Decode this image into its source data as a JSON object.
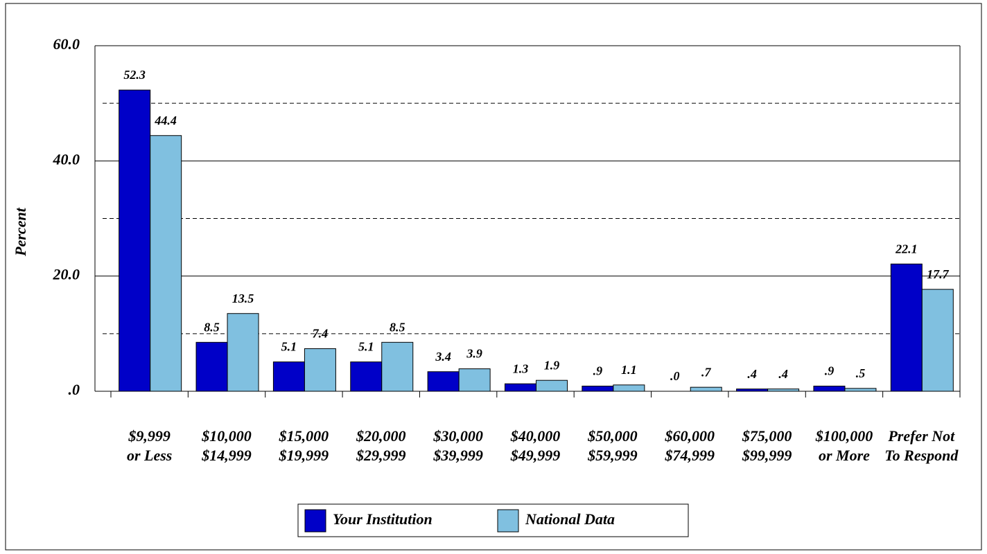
{
  "chart_data": {
    "type": "bar",
    "y_label": "Percent",
    "categories": [
      [
        "$9,999",
        "or Less"
      ],
      [
        "$10,000",
        "$14,999"
      ],
      [
        "$15,000",
        "$19,999"
      ],
      [
        "$20,000",
        "$29,999"
      ],
      [
        "$30,000",
        "$39,999"
      ],
      [
        "$40,000",
        "$49,999"
      ],
      [
        "$50,000",
        "$59,999"
      ],
      [
        "$60,000",
        "$74,999"
      ],
      [
        "$75,000",
        "$99,999"
      ],
      [
        "$100,000",
        "or More"
      ],
      [
        "Prefer Not",
        "To Respond"
      ]
    ],
    "series": [
      {
        "name": "Your Institution",
        "color": "#0000c8",
        "values": [
          52.3,
          8.5,
          5.1,
          5.1,
          3.4,
          1.3,
          0.9,
          0,
          0.4,
          0.9,
          22.1
        ],
        "value_labels": [
          "52.3",
          "8.5",
          "5.1",
          "5.1",
          "3.4",
          "1.3",
          ".9",
          ".0",
          ".4",
          ".9",
          "22.1"
        ]
      },
      {
        "name": "National Data",
        "color": "#80c0e0",
        "values": [
          44.4,
          13.5,
          7.4,
          8.5,
          3.9,
          1.9,
          1.1,
          0.7,
          0.4,
          0.5,
          17.7
        ],
        "value_labels": [
          "44.4",
          "13.5",
          "7.4",
          "8.5",
          "3.9",
          "1.9",
          "1.1",
          ".7",
          ".4",
          ".5",
          "17.7"
        ]
      }
    ],
    "ylim": [
      0,
      60
    ],
    "yticks": [
      {
        "value": 0,
        "label": ".0"
      },
      {
        "value": 20,
        "label": "20.0"
      },
      {
        "value": 40,
        "label": "40.0"
      },
      {
        "value": 60,
        "label": "60.0"
      }
    ],
    "minor_grid": [
      10,
      30,
      50
    ],
    "grid": true,
    "legend": "bottom"
  }
}
